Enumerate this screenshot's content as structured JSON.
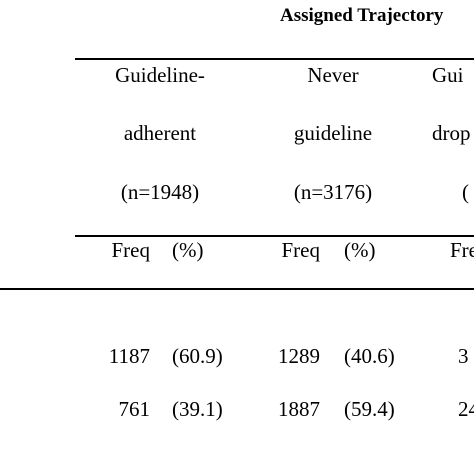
{
  "header": {
    "title": "Assigned Trajectory"
  },
  "table": {
    "groups": [
      {
        "lines": [
          "Guideline-",
          "adherent",
          "(n=1948)"
        ]
      },
      {
        "lines": [
          "Never",
          "guideline",
          "(n=3176)"
        ]
      },
      {
        "lines": [
          "Gui",
          "drop",
          "("
        ]
      }
    ],
    "subheaders": [
      [
        "Freq",
        "(%)"
      ],
      [
        "Freq",
        "(%)"
      ],
      [
        "Fre"
      ]
    ],
    "rows": [
      [
        [
          "1187",
          "(60.9)"
        ],
        [
          "1289",
          "(40.6)"
        ],
        [
          "3"
        ]
      ],
      [
        [
          "761",
          "(39.1)"
        ],
        [
          "1887",
          "(59.4)"
        ],
        [
          "24"
        ]
      ]
    ]
  }
}
